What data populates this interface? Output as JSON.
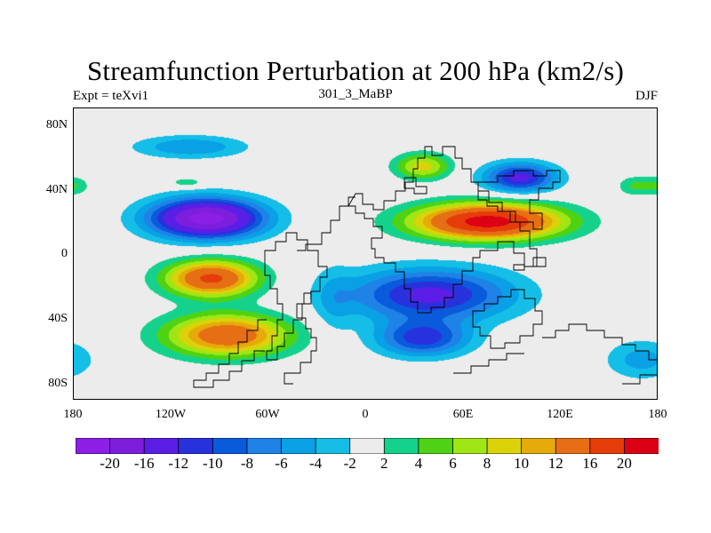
{
  "title": "Streamfunction Perturbation at 200 hPa (km2/s)",
  "left_subtitle": "Expt = teXvi1",
  "center_subtitle": "301_3_MaBP",
  "right_subtitle": "DJF",
  "lat_labels": [
    "80N",
    "40N",
    "0",
    "40S",
    "80S"
  ],
  "lon_labels": [
    "180",
    "120W",
    "60W",
    "0",
    "60E",
    "120E",
    "180"
  ],
  "colorbar": {
    "labels": [
      "-20",
      "-16",
      "-12",
      "-10",
      "-8",
      "-6",
      "-4",
      "-2",
      "2",
      "4",
      "6",
      "8",
      "10",
      "12",
      "16",
      "20"
    ],
    "colors": [
      "#8c1ee6",
      "#7d1edc",
      "#5a1ee6",
      "#2832dc",
      "#0a5adc",
      "#1e82e6",
      "#0aa0e6",
      "#14bee6",
      "#ececec",
      "#14d28c",
      "#50d214",
      "#a0e614",
      "#dcd20a",
      "#e6aa0a",
      "#e66e14",
      "#e63c0a",
      "#dc0014"
    ]
  },
  "chart_data": {
    "type": "heatmap",
    "variable": "Streamfunction Perturbation at 200 hPa",
    "units": "km2/s",
    "experiment": "teXvi1",
    "case": "301_3_MaBP",
    "season": "DJF",
    "x_range": [
      -180,
      180
    ],
    "y_range": [
      -90,
      90
    ],
    "levels": [
      -20,
      -16,
      -12,
      -10,
      -8,
      -6,
      -4,
      -2,
      2,
      4,
      6,
      8,
      10,
      12,
      16,
      20
    ],
    "features": [
      {
        "lon": -98,
        "lat": 22,
        "amp": -22,
        "slon": 34,
        "slat": 12
      },
      {
        "lon": -108,
        "lat": 66,
        "amp": -6,
        "slon": 34,
        "slat": 7
      },
      {
        "lon": 95,
        "lat": 47,
        "amp": -13,
        "slon": 22,
        "slat": 9
      },
      {
        "lon": 75,
        "lat": 20,
        "amp": 22,
        "slon": 45,
        "slat": 11
      },
      {
        "lon": 35,
        "lat": 54,
        "amp": 9,
        "slon": 17,
        "slat": 8
      },
      {
        "lon": -110,
        "lat": 44,
        "amp": 4,
        "slon": 10,
        "slat": 3
      },
      {
        "lon": 165,
        "lat": 42,
        "amp": 4,
        "slon": 10,
        "slat": 6
      },
      {
        "lon": -180,
        "lat": 42,
        "amp": 4,
        "slon": 10,
        "slat": 6
      },
      {
        "lon": -95,
        "lat": -15,
        "amp": 17,
        "slon": 28,
        "slat": 11
      },
      {
        "lon": -85,
        "lat": -50,
        "amp": 15,
        "slon": 38,
        "slat": 13
      },
      {
        "lon": 40,
        "lat": -25,
        "amp": -13,
        "slon": 50,
        "slat": 16
      },
      {
        "lon": 35,
        "lat": -52,
        "amp": -11,
        "slon": 28,
        "slat": 11
      },
      {
        "lon": 170,
        "lat": -65,
        "amp": -5,
        "slon": 22,
        "slat": 12
      },
      {
        "lon": -20,
        "lat": -30,
        "amp": -3,
        "slon": 12,
        "slat": 22
      }
    ]
  }
}
